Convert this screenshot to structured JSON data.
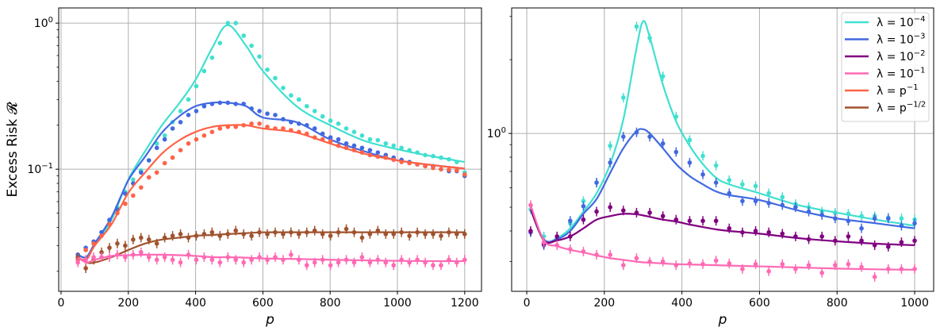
{
  "chart_data": [
    {
      "type": "line",
      "ylabel": "Excess Risk 𝓡",
      "xlabel": "p",
      "yscale": "log",
      "xlim": [
        -7,
        1250
      ],
      "ylim": [
        0.0146,
        1.27
      ],
      "grid": true,
      "xticks": [
        0,
        200,
        400,
        600,
        800,
        1000,
        1200
      ],
      "xtick_labels": [
        "0",
        "200",
        "400",
        "600",
        "800",
        "1000",
        "1200"
      ],
      "yticks": [
        {
          "value": 1,
          "base": "10",
          "exp": "0"
        },
        {
          "value": 0.1,
          "base": "10",
          "exp": "−1"
        }
      ],
      "scatter_x": [
        50,
        73.5,
        96.9,
        120.4,
        143.9,
        167.3,
        190.8,
        214.3,
        237.8,
        261.2,
        284.7,
        308.2,
        331.6,
        355.1,
        378.6,
        402,
        425.5,
        449,
        472.4,
        495.9,
        519.4,
        542.9,
        566.3,
        589.8,
        613.3,
        636.7,
        660.2,
        683.7,
        707.1,
        730.6,
        754.1,
        777.6,
        801,
        824.5,
        848,
        871.4,
        894.9,
        918.4,
        941.8,
        965.3,
        988.8,
        1012.2,
        1035.7,
        1059.2,
        1082.7,
        1106.1,
        1129.6,
        1153.1,
        1176.5,
        1200
      ],
      "curve_x": [
        50,
        75,
        100,
        150,
        200,
        250,
        300,
        350,
        400,
        450,
        495,
        550,
        600,
        700,
        800,
        900,
        1000,
        1100,
        1200
      ],
      "series": [
        {
          "key": "l4",
          "color": "#40E0D0",
          "errorbars": false,
          "curve": [
            0.026,
            0.025,
            0.03,
            0.045,
            0.085,
            0.133,
            0.2,
            0.28,
            0.41,
            0.68,
            0.97,
            0.7,
            0.47,
            0.27,
            0.2,
            0.157,
            0.137,
            0.123,
            0.112
          ],
          "points": [
            0.026,
            0.028,
            0.031,
            0.037,
            0.045,
            0.055,
            0.07,
            0.085,
            0.098,
            0.115,
            0.15,
            0.17,
            0.21,
            0.25,
            0.3,
            0.37,
            0.47,
            0.58,
            0.73,
            1.0,
            1.0,
            0.82,
            0.7,
            0.59,
            0.48,
            0.42,
            0.36,
            0.32,
            0.3,
            0.27,
            0.25,
            0.23,
            0.215,
            0.205,
            0.19,
            0.18,
            0.17,
            0.16,
            0.158,
            0.15,
            0.145,
            0.14,
            0.135,
            0.13,
            0.125,
            0.123,
            0.12,
            0.117,
            0.112,
            0.095
          ]
        },
        {
          "key": "l3",
          "color": "#4169E1",
          "errorbars": false,
          "curve": [
            0.026,
            0.025,
            0.031,
            0.047,
            0.084,
            0.122,
            0.178,
            0.229,
            0.27,
            0.285,
            0.285,
            0.27,
            0.226,
            0.21,
            0.16,
            0.133,
            0.115,
            0.107,
            0.101
          ],
          "points": [
            0.026,
            0.029,
            0.032,
            0.037,
            0.045,
            0.053,
            0.068,
            0.08,
            0.095,
            0.115,
            0.14,
            0.16,
            0.19,
            0.21,
            0.235,
            0.25,
            0.27,
            0.28,
            0.285,
            0.285,
            0.28,
            0.28,
            0.26,
            0.25,
            0.24,
            0.235,
            0.22,
            0.21,
            0.205,
            0.2,
            0.19,
            0.175,
            0.165,
            0.16,
            0.15,
            0.145,
            0.14,
            0.135,
            0.13,
            0.125,
            0.12,
            0.116,
            0.112,
            0.108,
            0.105,
            0.105,
            0.1,
            0.097,
            0.097,
            0.09
          ]
        },
        {
          "key": "pinv",
          "color": "#FF6347",
          "errorbars": false,
          "curve": [
            0.025,
            0.024,
            0.03,
            0.042,
            0.069,
            0.095,
            0.128,
            0.157,
            0.18,
            0.195,
            0.2,
            0.2,
            0.19,
            0.178,
            0.15,
            0.128,
            0.115,
            0.107,
            0.101
          ],
          "points": [
            0.024,
            0.028,
            0.031,
            0.035,
            0.042,
            0.05,
            0.058,
            0.066,
            0.075,
            0.088,
            0.095,
            0.11,
            0.12,
            0.135,
            0.15,
            0.16,
            0.17,
            0.18,
            0.19,
            0.195,
            0.195,
            0.2,
            0.205,
            0.205,
            0.195,
            0.19,
            0.19,
            0.185,
            0.18,
            0.175,
            0.165,
            0.16,
            0.155,
            0.145,
            0.14,
            0.135,
            0.13,
            0.125,
            0.122,
            0.12,
            0.116,
            0.112,
            0.11,
            0.108,
            0.105,
            0.102,
            0.1,
            0.099,
            0.098,
            0.092
          ]
        },
        {
          "key": "psqrt",
          "color": "#A0522D",
          "errorbars": true,
          "curve": [
            0.025,
            0.023,
            0.023,
            0.025,
            0.028,
            0.031,
            0.033,
            0.034,
            0.035,
            0.0355,
            0.036,
            0.0365,
            0.037,
            0.037,
            0.037,
            0.037,
            0.037,
            0.037,
            0.037
          ],
          "points": [
            0.025,
            0.021,
            0.024,
            0.027,
            0.029,
            0.031,
            0.03,
            0.033,
            0.034,
            0.033,
            0.031,
            0.034,
            0.035,
            0.036,
            0.034,
            0.035,
            0.036,
            0.037,
            0.035,
            0.036,
            0.038,
            0.036,
            0.035,
            0.037,
            0.036,
            0.037,
            0.036,
            0.037,
            0.036,
            0.037,
            0.038,
            0.036,
            0.035,
            0.037,
            0.039,
            0.037,
            0.034,
            0.036,
            0.038,
            0.036,
            0.036,
            0.037,
            0.035,
            0.037,
            0.036,
            0.036,
            0.035,
            0.037,
            0.036,
            0.036
          ]
        },
        {
          "key": "l1",
          "color": "#FF69B4",
          "errorbars": true,
          "curve": [
            0.025,
            0.023,
            0.024,
            0.0255,
            0.0258,
            0.026,
            0.026,
            0.0258,
            0.0255,
            0.025,
            0.025,
            0.0248,
            0.0245,
            0.0243,
            0.024,
            0.0238,
            0.0236,
            0.0235,
            0.0235
          ],
          "points": [
            0.023,
            0.024,
            0.025,
            0.025,
            0.025,
            0.026,
            0.025,
            0.026,
            0.027,
            0.025,
            0.024,
            0.025,
            0.024,
            0.023,
            0.026,
            0.024,
            0.025,
            0.024,
            0.023,
            0.025,
            0.024,
            0.023,
            0.024,
            0.025,
            0.024,
            0.025,
            0.024,
            0.026,
            0.024,
            0.022,
            0.023,
            0.024,
            0.022,
            0.023,
            0.024,
            0.023,
            0.025,
            0.023,
            0.024,
            0.023,
            0.022,
            0.024,
            0.023,
            0.024,
            0.023,
            0.022,
            0.022,
            0.024,
            0.023,
            0.024
          ]
        }
      ]
    },
    {
      "type": "line",
      "xlabel": "p",
      "yscale": "log",
      "xlim": [
        -39,
        1049
      ],
      "ylim": [
        0.227,
        3.25
      ],
      "grid": true,
      "xticks": [
        0,
        200,
        400,
        600,
        800,
        1000
      ],
      "xtick_labels": [
        "0",
        "200",
        "400",
        "600",
        "800",
        "1000"
      ],
      "yticks": [
        {
          "value": 1,
          "base": "10",
          "exp": "0"
        }
      ],
      "scatter_x": [
        10,
        44,
        78,
        112,
        146,
        180,
        215,
        249,
        283,
        317,
        351,
        385,
        420,
        454,
        488,
        522,
        556,
        590,
        624,
        659,
        693,
        727,
        761,
        795,
        829,
        863,
        897,
        932,
        966,
        1000
      ],
      "curve_x": [
        10,
        44,
        78,
        112,
        146,
        180,
        215,
        249,
        283,
        300,
        317,
        351,
        385,
        420,
        454,
        488,
        522,
        600,
        700,
        800,
        900,
        1000
      ],
      "series": [
        {
          "key": "l4",
          "color": "#40E0D0",
          "errorbars": true,
          "curve": [
            0.49,
            0.366,
            0.374,
            0.41,
            0.48,
            0.57,
            0.75,
            1.14,
            2.23,
            2.87,
            2.47,
            1.58,
            1.12,
            0.89,
            0.75,
            0.66,
            0.62,
            0.57,
            0.51,
            0.475,
            0.445,
            0.42
          ],
          "points": [
            0.49,
            0.38,
            0.38,
            0.43,
            0.53,
            0.63,
            0.89,
            1.4,
            2.73,
            2.45,
            1.71,
            1.17,
            0.94,
            0.81,
            0.74,
            0.645,
            0.62,
            0.61,
            0.57,
            0.55,
            0.515,
            0.5,
            0.48,
            0.475,
            0.47,
            0.46,
            0.46,
            0.453,
            0.45,
            0.445
          ]
        },
        {
          "key": "l3",
          "color": "#4169E1",
          "errorbars": true,
          "curve": [
            0.49,
            0.37,
            0.37,
            0.4,
            0.47,
            0.54,
            0.69,
            0.87,
            1.02,
            1.04,
            1.0,
            0.87,
            0.75,
            0.67,
            0.62,
            0.58,
            0.56,
            0.535,
            0.485,
            0.45,
            0.43,
            0.41
          ],
          "points": [
            0.395,
            0.35,
            0.37,
            0.44,
            0.505,
            0.63,
            0.76,
            0.97,
            1.01,
            0.97,
            0.91,
            0.84,
            0.76,
            0.68,
            0.63,
            0.57,
            0.53,
            0.53,
            0.52,
            0.51,
            0.5,
            0.48,
            0.465,
            0.45,
            0.44,
            0.41,
            0.45,
            0.45,
            0.42,
            0.43
          ]
        },
        {
          "key": "l2",
          "color": "#800080",
          "errorbars": true,
          "curve": [
            0.49,
            0.366,
            0.366,
            0.38,
            0.41,
            0.445,
            0.46,
            0.47,
            0.468,
            0.463,
            0.457,
            0.445,
            0.437,
            0.425,
            0.415,
            0.406,
            0.4,
            0.39,
            0.374,
            0.363,
            0.355,
            0.35
          ],
          "points": [
            0.4,
            0.355,
            0.38,
            0.38,
            0.445,
            0.48,
            0.5,
            0.485,
            0.475,
            0.475,
            0.46,
            0.445,
            0.44,
            0.44,
            0.44,
            0.41,
            0.395,
            0.4,
            0.395,
            0.39,
            0.38,
            0.37,
            0.38,
            0.365,
            0.38,
            0.365,
            0.35,
            0.345,
            0.36,
            0.365
          ]
        },
        {
          "key": "l1",
          "color": "#FF69B4",
          "errorbars": true,
          "curve": [
            0.51,
            0.366,
            0.347,
            0.335,
            0.327,
            0.318,
            0.31,
            0.305,
            0.3,
            0.298,
            0.297,
            0.295,
            0.293,
            0.292,
            0.291,
            0.29,
            0.289,
            0.287,
            0.284,
            0.281,
            0.279,
            0.278
          ],
          "points": [
            0.51,
            0.36,
            0.35,
            0.337,
            0.33,
            0.32,
            0.32,
            0.29,
            0.31,
            0.3,
            0.3,
            0.29,
            0.295,
            0.293,
            0.303,
            0.295,
            0.28,
            0.293,
            0.274,
            0.293,
            0.28,
            0.29,
            0.27,
            0.29,
            0.293,
            0.285,
            0.26,
            0.28,
            0.28,
            0.28
          ]
        }
      ],
      "legend": {
        "placement": "top-right",
        "entries": [
          {
            "color": "#40E0D0",
            "base": "λ = 10",
            "exp": "−4"
          },
          {
            "color": "#4169E1",
            "base": "λ = 10",
            "exp": "−3"
          },
          {
            "color": "#800080",
            "base": "λ = 10",
            "exp": "−2"
          },
          {
            "color": "#FF69B4",
            "base": "λ = 10",
            "exp": "−1"
          },
          {
            "color": "#FF6347",
            "base": "λ = p",
            "exp": "−1"
          },
          {
            "color": "#A0522D",
            "base": "λ = p",
            "exp": "−1/2"
          }
        ]
      }
    }
  ]
}
